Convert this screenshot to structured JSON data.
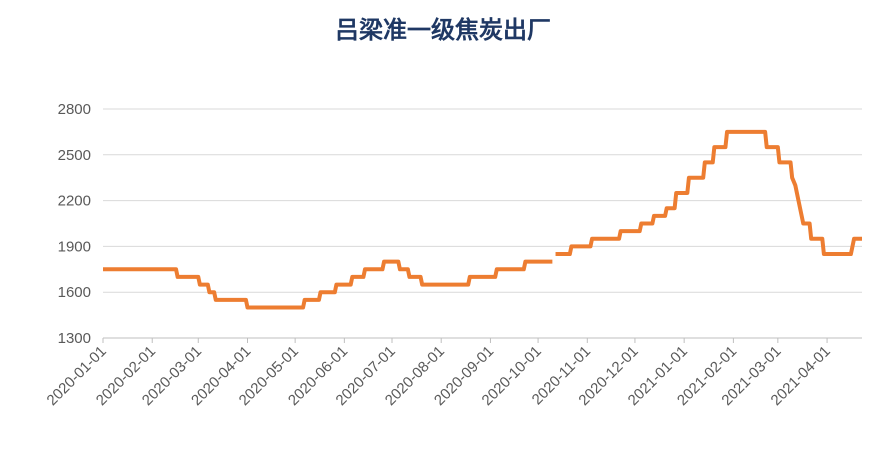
{
  "chart_data": {
    "type": "line",
    "title": "吕梁准一级焦炭出厂",
    "x": [
      "2020-01-01",
      "2020-02-16",
      "2020-02-17",
      "2020-03-01",
      "2020-03-02",
      "2020-03-07",
      "2020-03-08",
      "2020-03-11",
      "2020-03-12",
      "2020-03-31",
      "2020-04-01",
      "2020-05-06",
      "2020-05-07",
      "2020-05-16",
      "2020-05-17",
      "2020-05-26",
      "2020-05-27",
      "2020-06-05",
      "2020-06-06",
      "2020-06-13",
      "2020-06-14",
      "2020-06-25",
      "2020-06-26",
      "2020-07-05",
      "2020-07-06",
      "2020-07-11",
      "2020-07-12",
      "2020-07-19",
      "2020-07-20",
      "2020-08-18",
      "2020-08-19",
      "2020-09-04",
      "2020-09-05",
      "2020-09-22",
      "2020-09-23",
      "2020-10-10",
      "2020-10-11",
      "2020-10-12",
      "2020-10-21",
      "2020-10-22",
      "2020-11-03",
      "2020-11-04",
      "2020-11-21",
      "2020-11-22",
      "2020-12-04",
      "2020-12-05",
      "2020-12-12",
      "2020-12-13",
      "2020-12-20",
      "2020-12-21",
      "2020-12-26",
      "2020-12-27",
      "2021-01-03",
      "2021-01-04",
      "2021-01-13",
      "2021-01-14",
      "2021-01-19",
      "2021-01-20",
      "2021-01-27",
      "2021-01-28",
      "2021-02-21",
      "2021-02-22",
      "2021-03-01",
      "2021-03-02",
      "2021-03-09",
      "2021-03-10",
      "2021-03-12",
      "2021-03-15",
      "2021-03-16",
      "2021-03-17",
      "2021-03-21",
      "2021-03-22",
      "2021-03-29",
      "2021-03-30",
      "2021-04-16",
      "2021-04-18",
      "2021-04-23"
    ],
    "series": [
      {
        "color": "#ed7d31",
        "values": [
          1750,
          1750,
          1700,
          1700,
          1650,
          1650,
          1600,
          1600,
          1550,
          1550,
          1500,
          1500,
          1550,
          1550,
          1600,
          1600,
          1650,
          1650,
          1700,
          1700,
          1750,
          1750,
          1800,
          1800,
          1750,
          1750,
          1700,
          1700,
          1650,
          1650,
          1700,
          1700,
          1750,
          1750,
          1800,
          1800,
          null,
          1850,
          1850,
          1900,
          1900,
          1950,
          1950,
          2000,
          2000,
          2050,
          2050,
          2100,
          2100,
          2150,
          2150,
          2250,
          2250,
          2350,
          2350,
          2450,
          2450,
          2550,
          2550,
          2650,
          2650,
          2550,
          2550,
          2450,
          2450,
          2350,
          2300,
          2150,
          2100,
          2050,
          2050,
          1950,
          1950,
          1850,
          1850,
          1950,
          1950
        ]
      }
    ],
    "xlim": [
      "2020-01-01",
      "2021-04-23"
    ],
    "xticks": [
      "2020-01-01",
      "2020-02-01",
      "2020-03-01",
      "2020-04-01",
      "2020-05-01",
      "2020-06-01",
      "2020-07-01",
      "2020-08-01",
      "2020-09-01",
      "2020-10-01",
      "2020-11-01",
      "2020-12-01",
      "2021-01-01",
      "2021-02-01",
      "2021-03-01",
      "2021-04-01"
    ],
    "ylim": [
      1300,
      2800
    ],
    "yticks": [
      1300,
      1600,
      1900,
      2200,
      2500,
      2800
    ],
    "grid": true
  }
}
